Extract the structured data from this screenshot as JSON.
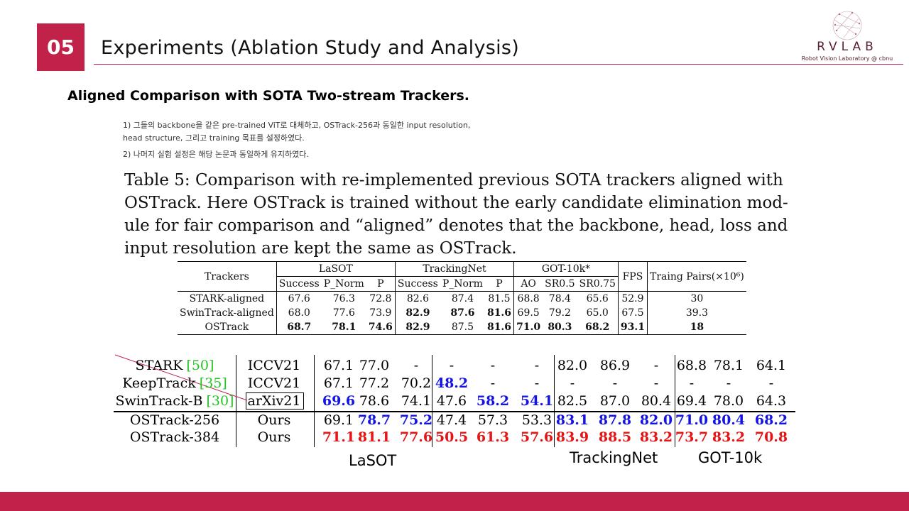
{
  "slide": {
    "number": "05",
    "title": "Experiments (Ablation Study and Analysis)",
    "subtitle": "Aligned Comparison with SOTA Two-stream Trackers."
  },
  "logo": {
    "name": "RVLAB",
    "sub": "Robot Vision Laboratory @ cbnu"
  },
  "notes": [
    "1) 그들의 backbone을 같은 pre-trained ViT로 대체하고, OSTrack-256과 동일한 input resolution,",
    "head structure, 그리고 training 목표를 설정하였다.",
    "2) 나머지 실험 설정은 해당 논문과 동일하게 유지하였다."
  ],
  "caption_lines": [
    "Table 5: Comparison with re-implemented previous SOTA trackers aligned with",
    "OSTrack. Here OSTrack is trained without the early candidate elimination mod-",
    "ule for fair comparison and “aligned” denotes that the backbone, head, loss and",
    "input resolution are kept the same as OSTrack."
  ],
  "table5": {
    "headers": {
      "trackers": "Trackers",
      "lasot": "LaSOT",
      "trackingnet": "TrackingNet",
      "got": "GOT-10k*",
      "fps": "FPS",
      "pairs": "Traing Pairs(×10⁶)",
      "success": "Success",
      "pnorm": "P_Norm",
      "p": "P",
      "ao": "AO",
      "sr05": "SR0.5",
      "sr075": "SR0.75"
    },
    "rows": [
      {
        "name": "STARK-aligned",
        "vals": [
          "67.6",
          "76.3",
          "72.8",
          "82.6",
          "87.4",
          "81.5",
          "68.8",
          "78.4",
          "65.6",
          "52.9",
          "30"
        ]
      },
      {
        "name": "SwinTrack-aligned",
        "vals": [
          "68.0",
          "77.6",
          "73.9",
          "82.9",
          "87.6",
          "81.6",
          "69.5",
          "79.2",
          "65.0",
          "67.5",
          "39.3"
        ]
      },
      {
        "name": "OSTrack",
        "vals": [
          "68.7",
          "78.1",
          "74.6",
          "82.9",
          "87.5",
          "81.6",
          "71.0",
          "80.3",
          "68.2",
          "93.1",
          "18"
        ]
      }
    ]
  },
  "results": {
    "rows": [
      {
        "name": "STARK",
        "ref": "[50]",
        "venue": "ICCV21",
        "vals": [
          "67.1",
          "77.0",
          "-",
          "-",
          "-",
          "-",
          "82.0",
          "86.9",
          "-",
          "68.8",
          "78.1",
          "64.1"
        ]
      },
      {
        "name": "KeepTrack",
        "ref": "[35]",
        "venue": "ICCV21",
        "vals": [
          "67.1",
          "77.2",
          "70.2",
          "48.2",
          "-",
          "-",
          "-",
          "-",
          "-",
          "-",
          "-",
          "-"
        ]
      },
      {
        "name": "SwinTrack-B",
        "ref": "[30]",
        "venue": "arXiv21",
        "vals": [
          "69.6",
          "78.6",
          "74.1",
          "47.6",
          "58.2",
          "54.1",
          "82.5",
          "87.0",
          "80.4",
          "69.4",
          "78.0",
          "64.3"
        ]
      },
      {
        "name": "OSTrack-256",
        "ref": "",
        "venue": "Ours",
        "vals": [
          "69.1",
          "78.7",
          "75.2",
          "47.4",
          "57.3",
          "53.3",
          "83.1",
          "87.8",
          "82.0",
          "71.0",
          "80.4",
          "68.2"
        ]
      },
      {
        "name": "OSTrack-384",
        "ref": "",
        "venue": "Ours",
        "vals": [
          "71.1",
          "81.1",
          "77.6",
          "50.5",
          "61.3",
          "57.6",
          "83.9",
          "88.5",
          "83.2",
          "73.7",
          "83.2",
          "70.8"
        ]
      }
    ],
    "benchmark_labels": [
      "LaSOT",
      "TrackingNet",
      "GOT-10k"
    ]
  },
  "colors": {
    "accent": "#c0224a",
    "blue": "#1414e6",
    "red": "#e61414",
    "ref_green": "#22c422"
  }
}
